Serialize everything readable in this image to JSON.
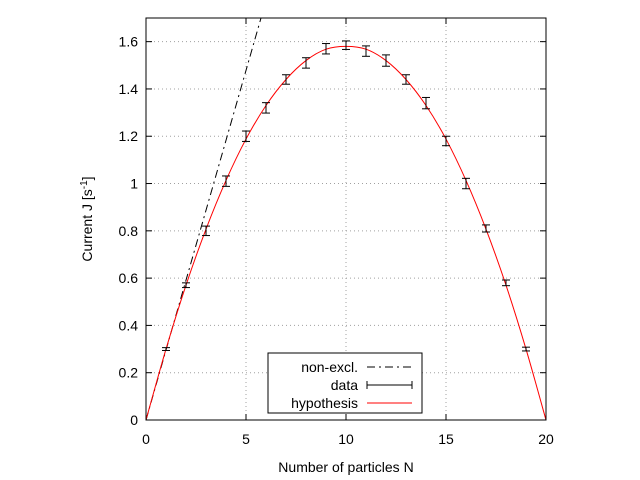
{
  "chart_data": {
    "type": "line",
    "xlabel": "Number of particles N",
    "ylabel": "Current J [s",
    "ylabel_sup": "-1",
    "ylabel_end": "]",
    "xlim": [
      0,
      20
    ],
    "ylim": [
      0,
      1.7
    ],
    "x_ticks": [
      0,
      5,
      10,
      15,
      20
    ],
    "x_tick_labels": [
      "0",
      "5",
      "10",
      "15",
      "20"
    ],
    "y_ticks": [
      0,
      0.2,
      0.4,
      0.6,
      0.8,
      1.0,
      1.2,
      1.4,
      1.6
    ],
    "y_tick_labels": [
      "0",
      "0.2",
      "0.4",
      "0.6",
      "0.8",
      "1",
      "1.2",
      "1.4",
      "1.6"
    ],
    "grid": true,
    "legend_position": "bottom-center",
    "series": [
      {
        "name": "non-excl.",
        "kind": "line",
        "style": "dash-dot",
        "color": "#000000",
        "x": [
          0,
          5.75
        ],
        "y": [
          0,
          1.7
        ]
      },
      {
        "name": "data",
        "kind": "errorbar",
        "color": "#000000",
        "x": [
          1,
          2,
          3,
          4,
          5,
          6,
          7,
          8,
          9,
          10,
          11,
          12,
          13,
          14,
          15,
          16,
          17,
          18,
          19
        ],
        "y": [
          0.3,
          0.57,
          0.8,
          1.01,
          1.2,
          1.32,
          1.44,
          1.51,
          1.57,
          1.585,
          1.56,
          1.52,
          1.44,
          1.34,
          1.18,
          1.0,
          0.81,
          0.58,
          0.3
        ],
        "err": [
          0.006,
          0.01,
          0.02,
          0.022,
          0.022,
          0.022,
          0.02,
          0.022,
          0.022,
          0.018,
          0.022,
          0.024,
          0.02,
          0.024,
          0.02,
          0.022,
          0.015,
          0.012,
          0.008
        ]
      },
      {
        "name": "hypothesis",
        "kind": "curve",
        "color": "#ff0000",
        "x": [
          0,
          1,
          2,
          3,
          4,
          5,
          6,
          7,
          8,
          9,
          10,
          11,
          12,
          13,
          14,
          15,
          16,
          17,
          18,
          19,
          20
        ],
        "y": [
          0,
          0.3,
          0.57,
          0.807,
          1.013,
          1.188,
          1.33,
          1.44,
          1.52,
          1.568,
          1.58,
          1.568,
          1.52,
          1.44,
          1.33,
          1.188,
          1.013,
          0.807,
          0.57,
          0.3,
          0
        ]
      }
    ]
  }
}
